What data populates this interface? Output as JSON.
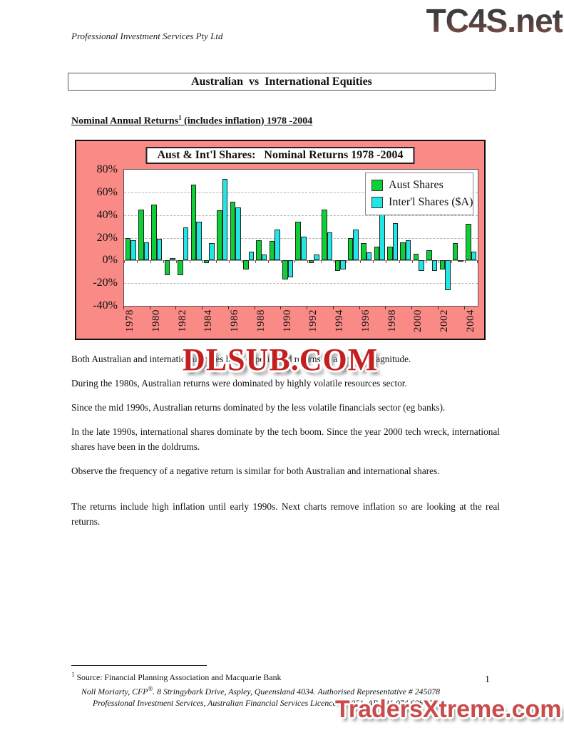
{
  "page": {
    "company_header": "Professional Investment Services Pty Ltd",
    "title": "Australian  vs  International Equities",
    "section_heading_pre": "Nominal Annual Returns",
    "section_heading_sup": "1",
    "section_heading_post": " (includes inflation) 1978 -2004",
    "page_number": "1"
  },
  "watermarks": {
    "top_right": "TC4S.net",
    "middle": "DLSUB.COM",
    "bottom_right": "TradersXtreme.com"
  },
  "paragraphs": {
    "p1": "Both Australian and international shares have experienced returns of a similar magnitude.",
    "p2": "During the 1980s, Australian returns were dominated by highly volatile resources sector.",
    "p3": "Since the mid 1990s, Australian returns dominated by the less volatile financials sector (eg banks).",
    "p4": "In the late 1990s, international shares dominate by the tech boom. Since the year 2000 tech wreck, international shares have been in the doldrums.",
    "p5": "Observe the frequency of a negative return is similar for both Australian and international shares.",
    "p6": "The returns include high inflation until early 1990s. Next charts remove inflation so are looking at the real returns."
  },
  "footnote": {
    "sup": "1",
    "source": " Source: Financial Planning Association and Macquarie Bank",
    "line2_pre": "Noll Moriarty, CFP",
    "line2_sup": "®",
    "line2_post": ".  8 Stringybark Drive, Aspley, Queensland  4034.   Authorised Representative  # 245078",
    "line3": "Professional Investment Services, Australian Financial Services Licence 234951, ABN 11 074 608 558"
  },
  "chart_data": {
    "type": "bar",
    "title": "Aust & Int'l Shares:   Nominal Returns 1978 -2004",
    "categories": [
      "1978",
      "1979",
      "1980",
      "1981",
      "1982",
      "1983",
      "1984",
      "1985",
      "1986",
      "1987",
      "1988",
      "1989",
      "1990",
      "1991",
      "1992",
      "1993",
      "1994",
      "1995",
      "1996",
      "1997",
      "1998",
      "1999",
      "2000",
      "2001",
      "2002",
      "2003",
      "2004"
    ],
    "series": [
      {
        "name": "Aust Shares",
        "color": "#0bd135",
        "values": [
          20,
          45,
          49,
          -13,
          -13,
          67,
          -2,
          44,
          52,
          -8,
          18,
          17,
          -17,
          34,
          -2,
          45,
          -9,
          20,
          15,
          12,
          12,
          16,
          6,
          9,
          -8,
          15,
          32
        ]
      },
      {
        "name": "Inter'l Shares ($A)",
        "color": "#21e6e6",
        "values": [
          18,
          16,
          19,
          2,
          29,
          34,
          15,
          72,
          47,
          8,
          5,
          27,
          -15,
          21,
          5,
          25,
          -8,
          27,
          7,
          42,
          33,
          18,
          -9,
          -9,
          -26,
          -1,
          8
        ]
      }
    ],
    "ylim": [
      -40,
      80
    ],
    "ytick_step": 20,
    "ytick_suffix": "%",
    "xtick_label_every": 2,
    "grid": "horizontal-dashed",
    "legend_position": "top-right",
    "chart_background": "#f98a86",
    "plot_background": "#ffffff",
    "xlabel": "",
    "ylabel": ""
  }
}
